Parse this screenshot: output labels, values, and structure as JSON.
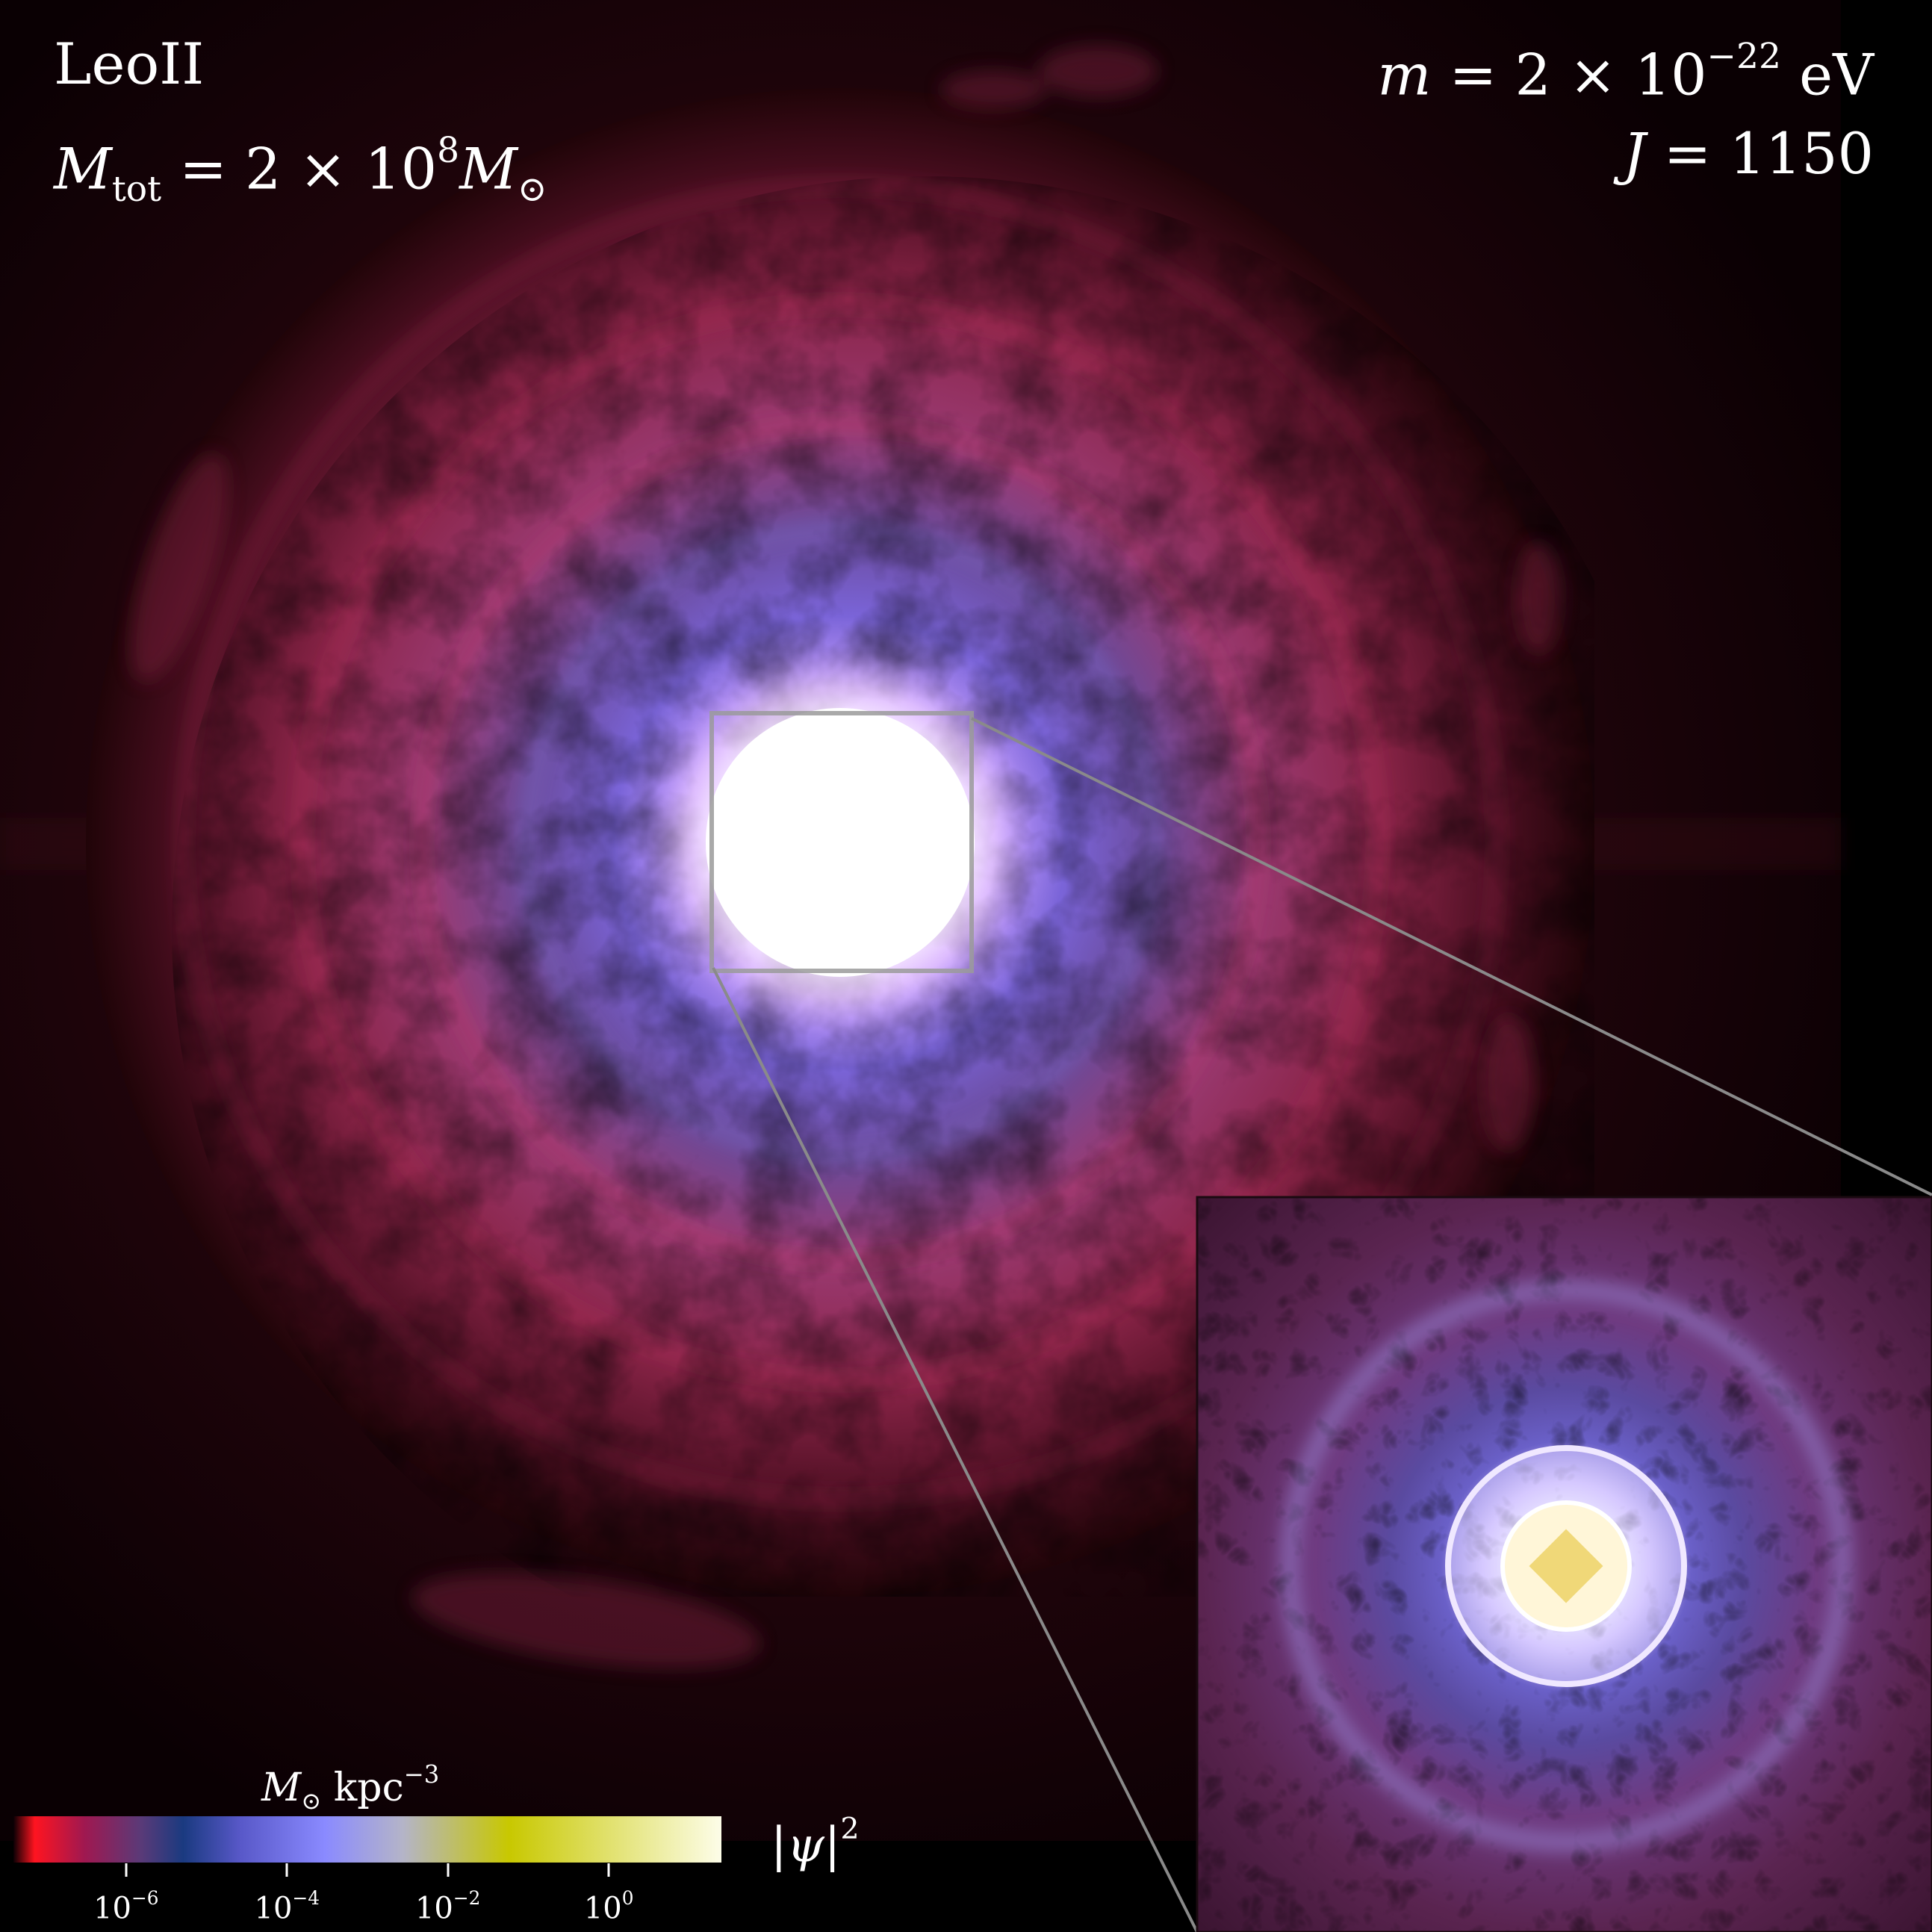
{
  "annotations": {
    "halo_name": "LeoII",
    "total_mass_symbol": "M",
    "total_mass_subscript": "tot",
    "total_mass_value": " = 2 × 10",
    "total_mass_exponent": "8",
    "total_mass_unit": "M",
    "total_mass_unit_sub": "⊙",
    "particle_mass_symbol": "m",
    "particle_mass_value": " = 2 × 10",
    "particle_mass_exponent": "−22",
    "particle_mass_unit": " eV",
    "angular_momentum_symbol": "J",
    "angular_momentum_value": " = 1150"
  },
  "colorbar": {
    "unit_symbol": "M",
    "unit_symbol_sub": "⊙",
    "unit_text": " kpc",
    "unit_exponent": "−3",
    "quantity_label": "|ψ|",
    "quantity_exponent": "2",
    "ticks": [
      {
        "base": "10",
        "exp": "−6",
        "log_value": -6
      },
      {
        "base": "10",
        "exp": "−4",
        "log_value": -4
      },
      {
        "base": "10",
        "exp": "−2",
        "log_value": -2
      },
      {
        "base": "10",
        "exp": "0",
        "log_value": 0
      }
    ],
    "log_range": [
      -7.4,
      1.4
    ],
    "stops": [
      "#0c0004",
      "#ff1420",
      "#a01850",
      "#5a3a78",
      "#1a3a80",
      "#5858c8",
      "#8a8aff",
      "#b4b4c8",
      "#c8c800",
      "#fdfde8"
    ]
  },
  "colors": {
    "background": "#000000",
    "outer_halo": "#b02850",
    "mid_halo": "#7a64d8",
    "core": "#ffffff",
    "inset_core": "#f0e070",
    "zoom_box": "#9a9a9a"
  }
}
